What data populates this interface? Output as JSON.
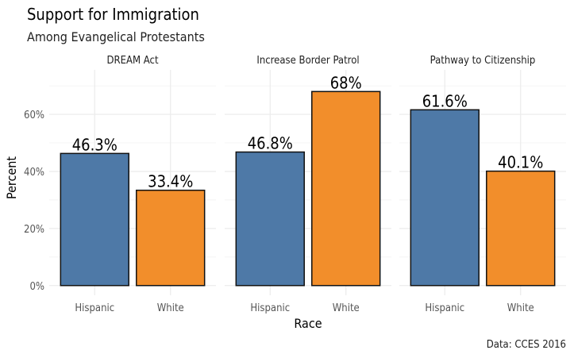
{
  "chart_data": {
    "type": "bar",
    "title": "Support for Immigration",
    "subtitle": "Among Evangelical Protestants",
    "xlabel": "Race",
    "ylabel": "Percent",
    "caption": "Data: CCES 2016",
    "ylim": [
      0,
      70
    ],
    "y_ticks": [
      "0%",
      "20%",
      "40%",
      "60%"
    ],
    "grid": true,
    "categories": [
      "Hispanic",
      "White"
    ],
    "colors": {
      "Hispanic": "#4E79A7",
      "White": "#F28E2B"
    },
    "facets": [
      {
        "label": "DREAM Act",
        "values": [
          46.3,
          33.4
        ],
        "labels": [
          "46.3%",
          "33.4%"
        ]
      },
      {
        "label": "Increase Border Patrol",
        "values": [
          46.8,
          68
        ],
        "labels": [
          "46.8%",
          "68%"
        ]
      },
      {
        "label": "Pathway to Citizenship",
        "values": [
          61.6,
          40.1
        ],
        "labels": [
          "61.6%",
          "40.1%"
        ]
      }
    ]
  }
}
